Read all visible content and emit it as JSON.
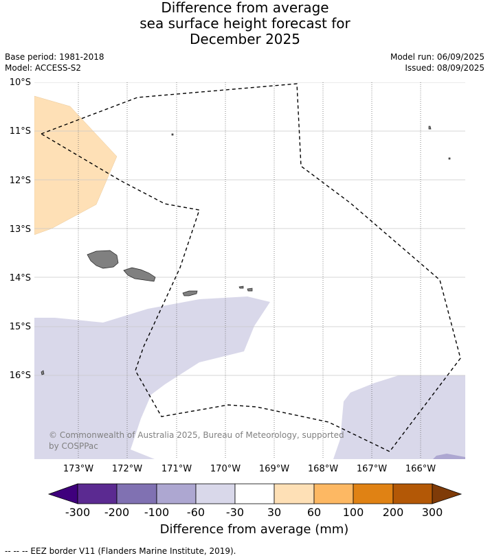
{
  "title": {
    "line1": "Difference from average",
    "line2": "sea surface height forecast for",
    "line3": "December 2025"
  },
  "meta": {
    "base_period": "Base period: 1981-2018",
    "model": "Model: ACCESS-S2",
    "model_run": "Model run: 06/09/2025",
    "issued": "Issued: 08/09/2025"
  },
  "map": {
    "lat_labels": [
      "10°S",
      "11°S",
      "12°S",
      "13°S",
      "14°S",
      "15°S",
      "16°S"
    ],
    "lon_labels": [
      "173°W",
      "172°W",
      "171°W",
      "170°W",
      "169°W",
      "168°W",
      "167°W",
      "166°W"
    ],
    "land_color": "#808080",
    "eez_line_color": "#000000"
  },
  "copyright": "© Commonwealth of Australia 2025, Bureau of Meteorology, supported by COSPPac",
  "colorbar": {
    "label": "Difference from average (mm)",
    "tick_labels": [
      "-300",
      "-200",
      "-100",
      "-60",
      "-30",
      "30",
      "60",
      "100",
      "200",
      "300"
    ],
    "colors": [
      "#3f007d",
      "#5b2a91",
      "#8071b2",
      "#ada7d1",
      "#d9d8ea",
      "#ffffff",
      "#fee0b6",
      "#fdb863",
      "#e08214",
      "#b35806",
      "#7f3b08"
    ]
  },
  "footnote": "--  --  -- EEZ border V11 (Flanders Marine Institute, 2019)."
}
